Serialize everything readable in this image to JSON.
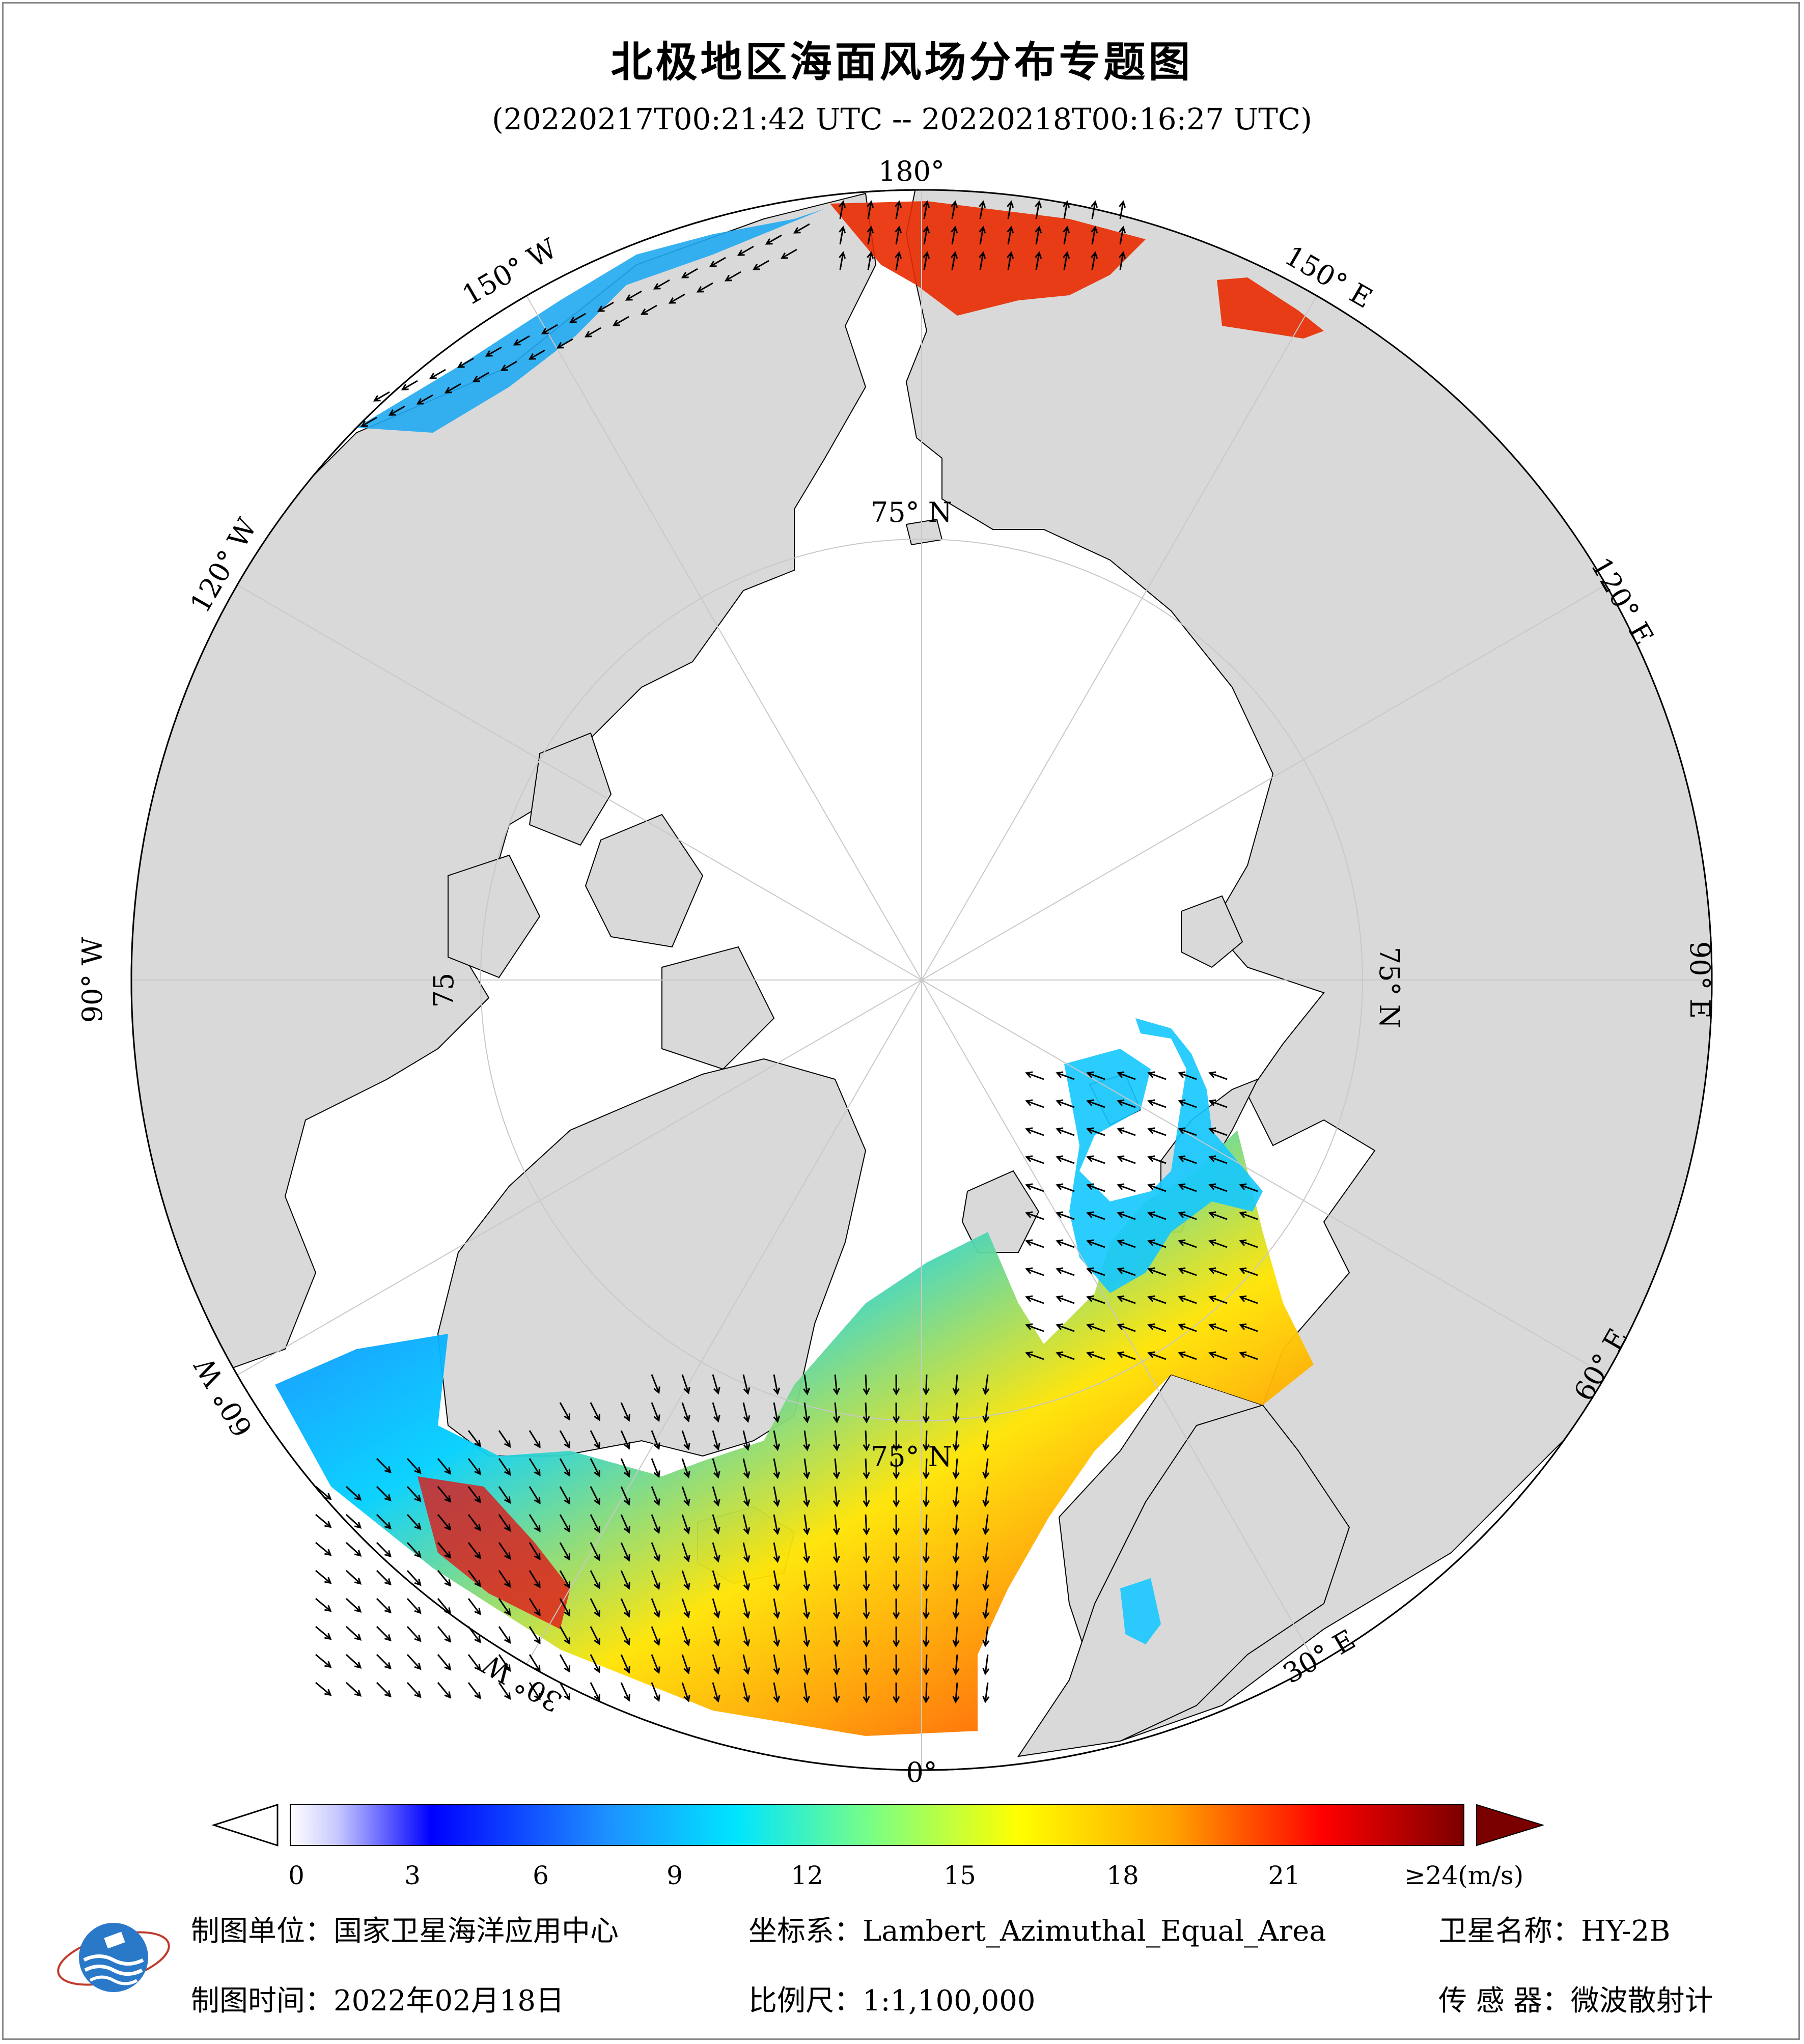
{
  "title": "北极地区海面风场分布专题图",
  "subtitle": "(20220217T00:21:42 UTC -- 20220218T00:16:27 UTC)",
  "map": {
    "projection": "Lambert_Azimuthal_Equal_Area",
    "center": "North Pole",
    "longitude_labels": [
      "180°",
      "150° E",
      "120° E",
      "90° E",
      "60° E",
      "30° E",
      "0°",
      "30° W",
      "60° W",
      "90° W",
      "120° W",
      "150° W"
    ],
    "latitude_labels": [
      "75° N",
      "75° N",
      "75° N",
      "75"
    ],
    "land_color": "#d9d9d9",
    "ocean_color": "#ffffff"
  },
  "colorbar": {
    "ticks": [
      "0",
      "3",
      "6",
      "9",
      "12",
      "15",
      "18",
      "21",
      "≥24(m/s)"
    ],
    "unit": "m/s",
    "min": 0,
    "max": 24,
    "colors": [
      "#ffffff",
      "#c8c8ff",
      "#0000ff",
      "#1e90ff",
      "#00e5ff",
      "#7fff7f",
      "#ffff00",
      "#ffa500",
      "#ff0000",
      "#7a0000"
    ]
  },
  "footer": {
    "unit_label": "制图单位：国家卫星海洋应用中心",
    "coord_label": "坐标系：Lambert_Azimuthal_Equal_Area",
    "satellite_label": "卫星名称：HY-2B",
    "date_label": "制图时间：2022年02月18日",
    "scale_label": "比例尺：1:1,100,000",
    "sensor_label": "传 感 器：微波散射计"
  }
}
